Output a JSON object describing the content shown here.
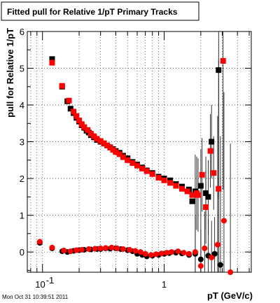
{
  "chart_data": {
    "type": "scatter",
    "title": "Fitted pull for Relative 1/pT  Primary Tracks",
    "xlabel": "pT (GeV/c)",
    "ylabel": "pull for Relative 1/pT",
    "xscale": "log",
    "xlim": [
      0.075,
      5.2
    ],
    "ylim": [
      -0.55,
      6.0
    ],
    "grid": true,
    "x_ticks": [
      {
        "value": 0.1,
        "base": "10",
        "exp": "-1"
      },
      {
        "value": 1,
        "label": "1"
      }
    ],
    "y_ticks": [
      0,
      1,
      2,
      3,
      4,
      5,
      6
    ],
    "timestamp": "Mon Oct 31 10:39:51 2011",
    "colors": {
      "series_black": "#000000",
      "series_red": "#ff0000"
    },
    "series": [
      {
        "marker": "square",
        "color": "#000000",
        "points": [
          [
            0.12,
            5.25
          ],
          [
            0.145,
            4.5
          ],
          [
            0.16,
            4.1
          ],
          [
            0.17,
            3.9
          ],
          [
            0.18,
            3.78
          ],
          [
            0.19,
            3.65
          ],
          [
            0.2,
            3.55
          ],
          [
            0.21,
            3.45
          ],
          [
            0.22,
            3.38
          ],
          [
            0.23,
            3.3
          ],
          [
            0.24,
            3.25
          ],
          [
            0.25,
            3.18
          ],
          [
            0.265,
            3.12
          ],
          [
            0.28,
            3.05
          ],
          [
            0.3,
            3.0
          ],
          [
            0.32,
            2.95
          ],
          [
            0.34,
            2.9
          ],
          [
            0.36,
            2.85
          ],
          [
            0.38,
            2.8
          ],
          [
            0.4,
            2.75
          ],
          [
            0.43,
            2.7
          ],
          [
            0.46,
            2.62
          ],
          [
            0.5,
            2.55
          ],
          [
            0.55,
            2.45
          ],
          [
            0.6,
            2.38
          ],
          [
            0.66,
            2.3
          ],
          [
            0.72,
            2.22
          ],
          [
            0.8,
            2.15
          ],
          [
            0.9,
            2.05
          ],
          [
            1.0,
            2.0
          ],
          [
            1.12,
            1.95
          ],
          [
            1.25,
            1.85
          ],
          [
            1.4,
            1.78
          ],
          [
            1.6,
            1.7
          ],
          [
            1.8,
            1.65
          ],
          [
            2.0,
            1.8
          ],
          [
            2.2,
            1.6
          ],
          [
            2.45,
            3.0
          ],
          [
            2.8,
            4.95
          ],
          [
            2.3,
            1.5
          ],
          [
            1.7,
            1.38
          ]
        ]
      },
      {
        "marker": "square",
        "color": "#ff0000",
        "points": [
          [
            0.12,
            5.15
          ],
          [
            0.145,
            4.52
          ],
          [
            0.165,
            4.12
          ],
          [
            0.18,
            3.82
          ],
          [
            0.19,
            3.7
          ],
          [
            0.2,
            3.58
          ],
          [
            0.21,
            3.48
          ],
          [
            0.22,
            3.4
          ],
          [
            0.235,
            3.32
          ],
          [
            0.25,
            3.22
          ],
          [
            0.265,
            3.15
          ],
          [
            0.28,
            3.08
          ],
          [
            0.3,
            3.02
          ],
          [
            0.32,
            2.96
          ],
          [
            0.34,
            2.9
          ],
          [
            0.36,
            2.84
          ],
          [
            0.38,
            2.78
          ],
          [
            0.4,
            2.72
          ],
          [
            0.43,
            2.66
          ],
          [
            0.46,
            2.58
          ],
          [
            0.5,
            2.5
          ],
          [
            0.55,
            2.42
          ],
          [
            0.6,
            2.35
          ],
          [
            0.66,
            2.27
          ],
          [
            0.72,
            2.2
          ],
          [
            0.8,
            2.12
          ],
          [
            0.9,
            2.02
          ],
          [
            1.0,
            1.95
          ],
          [
            1.12,
            1.88
          ],
          [
            1.25,
            1.8
          ],
          [
            1.4,
            1.72
          ],
          [
            1.55,
            1.65
          ],
          [
            1.7,
            1.55
          ],
          [
            1.85,
            1.6
          ],
          [
            2.05,
            2.1
          ],
          [
            2.2,
            1.22
          ],
          [
            2.4,
            2.75
          ],
          [
            2.55,
            2.15
          ],
          [
            2.8,
            1.72
          ],
          [
            3.05,
            5.2
          ],
          [
            1.9,
            1.55
          ]
        ]
      },
      {
        "marker": "circle",
        "color": "#000000",
        "points": [
          [
            0.095,
            0.25
          ],
          [
            0.12,
            0.1
          ],
          [
            0.145,
            0.02
          ],
          [
            0.16,
            0.0
          ],
          [
            0.18,
            0.03
          ],
          [
            0.2,
            0.05
          ],
          [
            0.22,
            0.06
          ],
          [
            0.25,
            0.07
          ],
          [
            0.28,
            0.08
          ],
          [
            0.3,
            0.08
          ],
          [
            0.33,
            0.1
          ],
          [
            0.36,
            0.09
          ],
          [
            0.4,
            0.1
          ],
          [
            0.44,
            0.08
          ],
          [
            0.5,
            0.05
          ],
          [
            0.55,
            0.02
          ],
          [
            0.6,
            -0.05
          ],
          [
            0.66,
            -0.08
          ],
          [
            0.72,
            -0.12
          ],
          [
            0.8,
            -0.1
          ],
          [
            0.9,
            -0.08
          ],
          [
            1.0,
            -0.05
          ],
          [
            1.1,
            -0.03
          ],
          [
            1.25,
            -0.02
          ],
          [
            1.4,
            -0.04
          ],
          [
            1.6,
            -0.08
          ],
          [
            1.8,
            -0.05
          ],
          [
            2.0,
            -0.2
          ],
          [
            2.3,
            -0.1
          ],
          [
            2.6,
            -0.05
          ],
          [
            2.9,
            -0.35
          ]
        ]
      },
      {
        "marker": "circle",
        "color": "#ff0000",
        "points": [
          [
            0.095,
            0.28
          ],
          [
            0.12,
            0.12
          ],
          [
            0.15,
            0.04
          ],
          [
            0.17,
            0.02
          ],
          [
            0.19,
            0.05
          ],
          [
            0.21,
            0.06
          ],
          [
            0.24,
            0.08
          ],
          [
            0.27,
            0.09
          ],
          [
            0.3,
            0.1
          ],
          [
            0.33,
            0.11
          ],
          [
            0.37,
            0.12
          ],
          [
            0.41,
            0.1
          ],
          [
            0.46,
            0.08
          ],
          [
            0.52,
            0.06
          ],
          [
            0.58,
            0.03
          ],
          [
            0.64,
            0.0
          ],
          [
            0.7,
            -0.05
          ],
          [
            0.78,
            -0.08
          ],
          [
            0.86,
            -0.06
          ],
          [
            0.95,
            -0.04
          ],
          [
            1.05,
            -0.02
          ],
          [
            1.15,
            0.0
          ],
          [
            1.3,
            0.02
          ],
          [
            1.45,
            -0.02
          ],
          [
            1.6,
            -0.05
          ],
          [
            1.8,
            0.0
          ],
          [
            2.0,
            -0.38
          ],
          [
            2.15,
            0.1
          ],
          [
            2.45,
            -0.15
          ],
          [
            2.75,
            0.2
          ],
          [
            3.1,
            0.85
          ],
          [
            3.5,
            -0.55
          ]
        ]
      }
    ]
  }
}
